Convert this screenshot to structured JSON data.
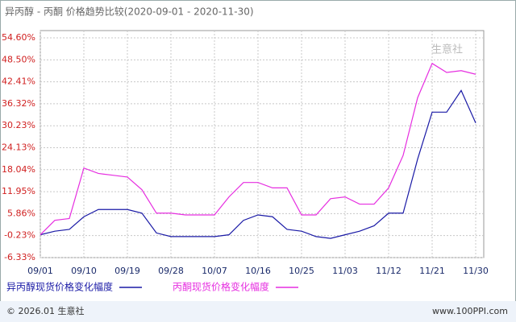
{
  "chart_data": {
    "type": "line",
    "title": "异丙醇 - 丙酮 价格趋势比较(2020-09-01 - 2020-11-30)",
    "categories": [
      "09/01",
      null,
      null,
      "09/10",
      null,
      null,
      "09/19",
      null,
      null,
      "09/28",
      null,
      null,
      "10/07",
      null,
      null,
      "10/16",
      null,
      null,
      "10/25",
      null,
      null,
      "11/03",
      null,
      null,
      "11/12",
      null,
      null,
      "11/21",
      null,
      null,
      "11/30"
    ],
    "series": [
      {
        "name": "异丙醇现货价格变化幅度",
        "color": "#1a1aa6",
        "values": [
          0,
          1,
          1.5,
          5,
          7,
          7,
          7,
          6,
          0.5,
          -0.5,
          -0.5,
          -0.5,
          -0.5,
          0,
          4,
          5.5,
          5,
          1.5,
          1,
          -0.5,
          -1,
          0,
          1,
          2.5,
          6,
          6,
          21,
          34,
          34,
          40,
          31
        ]
      },
      {
        "name": "丙酮现货价格变化幅度",
        "color": "#e62ee0",
        "values": [
          0,
          4,
          4.5,
          18.5,
          17,
          16.5,
          16,
          12.5,
          6,
          6,
          5.5,
          5.5,
          5.5,
          10.5,
          14.5,
          14.5,
          13,
          13,
          5.5,
          5.5,
          10,
          10.5,
          8.5,
          8.5,
          13,
          22,
          38,
          47.5,
          45,
          45.5,
          44.5
        ]
      }
    ],
    "ylim": [
      -6.33,
      54.6
    ],
    "yticks": [
      {
        "value": -6.33,
        "label": "-6.33%"
      },
      {
        "value": -0.23,
        "label": "-0.23%"
      },
      {
        "value": 5.86,
        "label": "5.86%"
      },
      {
        "value": 11.95,
        "label": "11.95%"
      },
      {
        "value": 18.04,
        "label": "18.04%"
      },
      {
        "value": 24.13,
        "label": "24.13%"
      },
      {
        "value": 30.23,
        "label": "30.23%"
      },
      {
        "value": 36.32,
        "label": "36.32%"
      },
      {
        "value": 42.41,
        "label": "42.41%"
      },
      {
        "value": 48.5,
        "label": "48.50%"
      },
      {
        "value": 54.6,
        "label": "54.60%"
      }
    ],
    "grid": true,
    "watermark": "生意社",
    "footer_left": "© 2026.01 生意社",
    "footer_right": "www.100PPI.com"
  }
}
